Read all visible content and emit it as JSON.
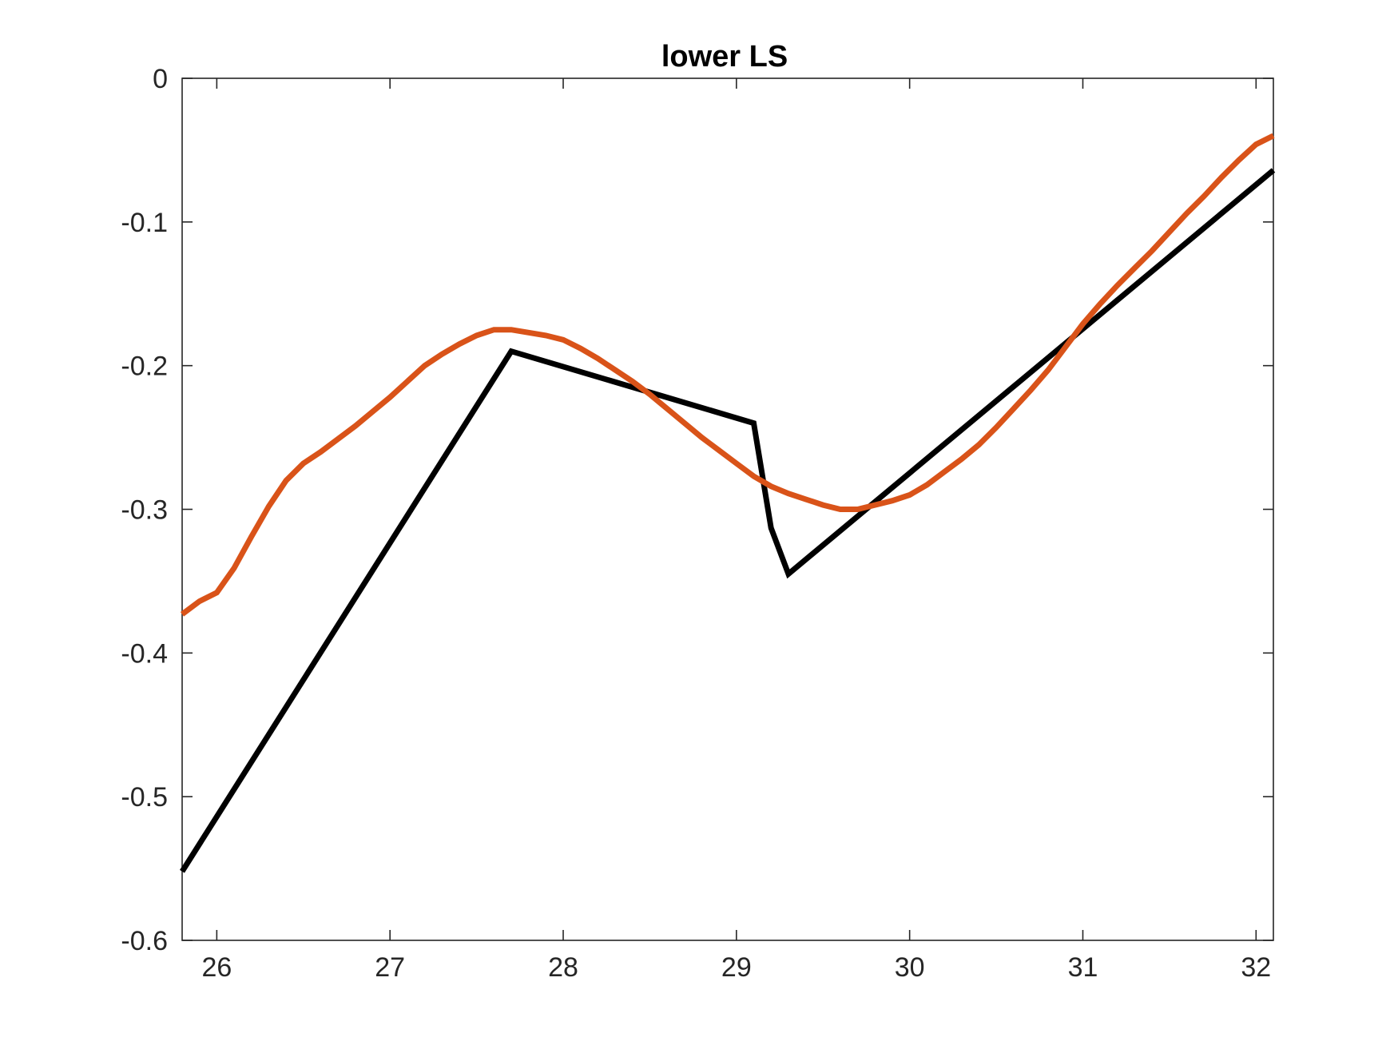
{
  "chart_data": {
    "type": "line",
    "title": "lower LS",
    "xlabel": "",
    "ylabel": "",
    "xlim": [
      25.8,
      32.1
    ],
    "ylim": [
      -0.6,
      0
    ],
    "xticks": [
      26,
      27,
      28,
      29,
      30,
      31,
      32
    ],
    "yticks": [
      0,
      -0.1,
      -0.2,
      -0.3,
      -0.4,
      -0.5,
      -0.6
    ],
    "xtick_labels": [
      "26",
      "27",
      "28",
      "29",
      "30",
      "31",
      "32"
    ],
    "ytick_labels": [
      "0",
      "-0.1",
      "-0.2",
      "-0.3",
      "-0.4",
      "-0.5",
      "-0.6"
    ],
    "grid": false,
    "series": [
      {
        "color": "#000000",
        "points": [
          [
            25.8,
            -0.552
          ],
          [
            27.7,
            -0.19
          ],
          [
            29.1,
            -0.24
          ],
          [
            29.2,
            -0.313
          ],
          [
            29.3,
            -0.345
          ],
          [
            32.1,
            -0.064
          ]
        ]
      },
      {
        "color": "#D95319",
        "points": [
          [
            25.8,
            -0.373
          ],
          [
            25.9,
            -0.364
          ],
          [
            26.0,
            -0.358
          ],
          [
            26.1,
            -0.341
          ],
          [
            26.2,
            -0.319
          ],
          [
            26.3,
            -0.298
          ],
          [
            26.4,
            -0.28
          ],
          [
            26.5,
            -0.268
          ],
          [
            26.6,
            -0.26
          ],
          [
            26.7,
            -0.251
          ],
          [
            26.8,
            -0.242
          ],
          [
            26.9,
            -0.232
          ],
          [
            27.0,
            -0.222
          ],
          [
            27.1,
            -0.211
          ],
          [
            27.2,
            -0.2
          ],
          [
            27.3,
            -0.192
          ],
          [
            27.4,
            -0.185
          ],
          [
            27.5,
            -0.179
          ],
          [
            27.6,
            -0.175
          ],
          [
            27.7,
            -0.175
          ],
          [
            27.8,
            -0.177
          ],
          [
            27.9,
            -0.179
          ],
          [
            28.0,
            -0.182
          ],
          [
            28.1,
            -0.188
          ],
          [
            28.2,
            -0.195
          ],
          [
            28.3,
            -0.203
          ],
          [
            28.4,
            -0.211
          ],
          [
            28.5,
            -0.22
          ],
          [
            28.6,
            -0.23
          ],
          [
            28.7,
            -0.24
          ],
          [
            28.8,
            -0.25
          ],
          [
            28.9,
            -0.259
          ],
          [
            29.0,
            -0.268
          ],
          [
            29.1,
            -0.277
          ],
          [
            29.2,
            -0.284
          ],
          [
            29.3,
            -0.289
          ],
          [
            29.4,
            -0.293
          ],
          [
            29.5,
            -0.297
          ],
          [
            29.6,
            -0.3
          ],
          [
            29.7,
            -0.3
          ],
          [
            29.8,
            -0.297
          ],
          [
            29.9,
            -0.294
          ],
          [
            30.0,
            -0.29
          ],
          [
            30.1,
            -0.283
          ],
          [
            30.2,
            -0.274
          ],
          [
            30.3,
            -0.265
          ],
          [
            30.4,
            -0.255
          ],
          [
            30.5,
            -0.243
          ],
          [
            30.6,
            -0.23
          ],
          [
            30.7,
            -0.217
          ],
          [
            30.8,
            -0.203
          ],
          [
            30.9,
            -0.187
          ],
          [
            31.0,
            -0.171
          ],
          [
            31.1,
            -0.157
          ],
          [
            31.2,
            -0.144
          ],
          [
            31.3,
            -0.132
          ],
          [
            31.4,
            -0.12
          ],
          [
            31.5,
            -0.107
          ],
          [
            31.6,
            -0.094
          ],
          [
            31.7,
            -0.082
          ],
          [
            31.8,
            -0.069
          ],
          [
            31.9,
            -0.057
          ],
          [
            32.0,
            -0.046
          ],
          [
            32.1,
            -0.04
          ]
        ]
      }
    ]
  }
}
